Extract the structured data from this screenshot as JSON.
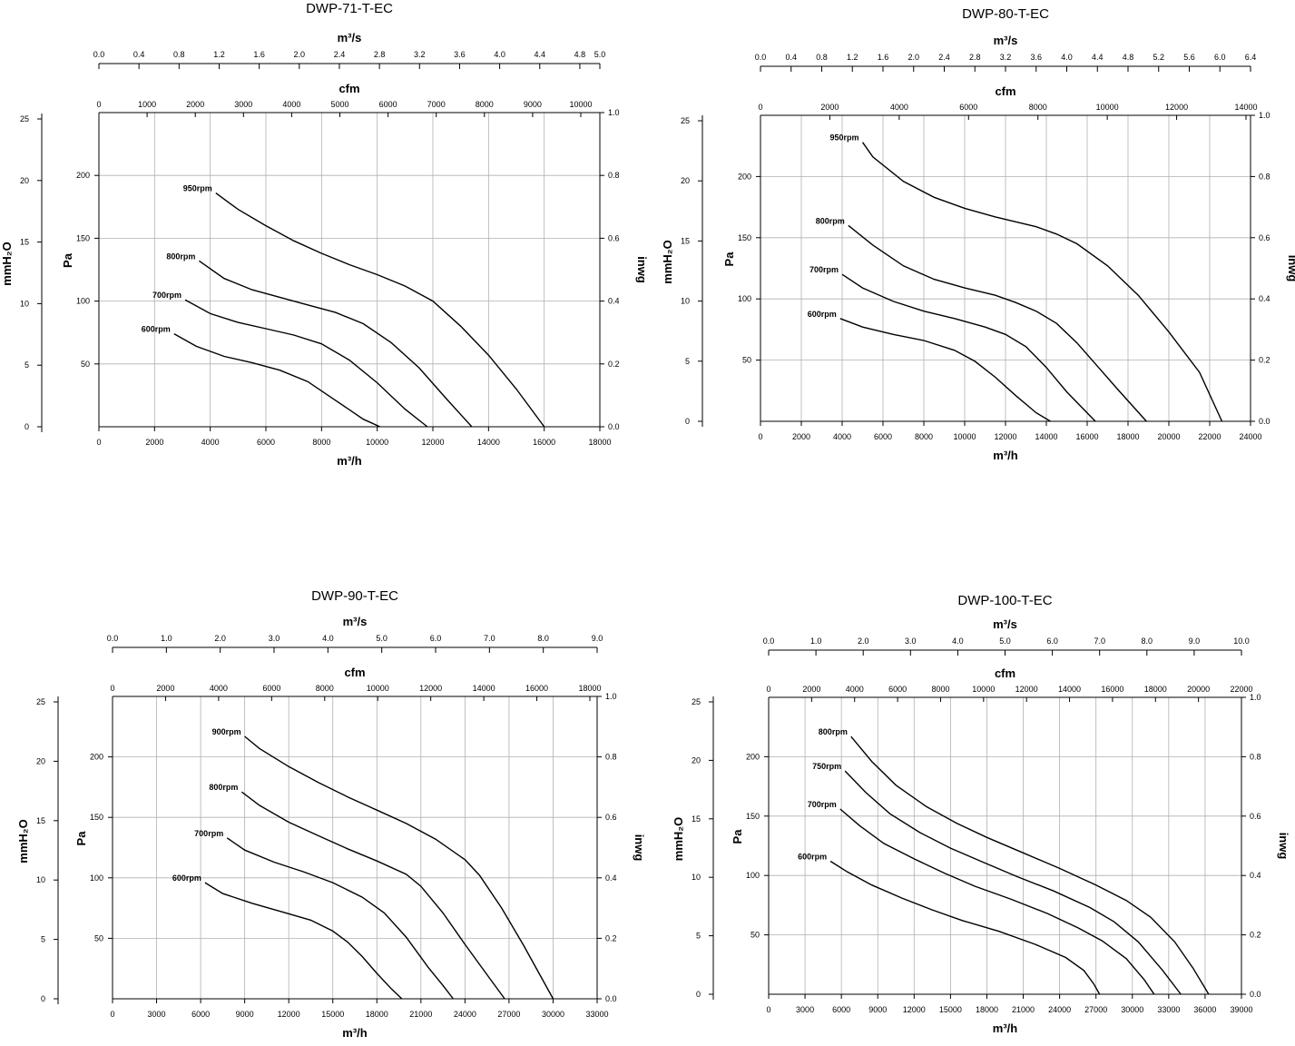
{
  "chart_data": [
    {
      "type": "line",
      "title": "DWP-71-T-EC",
      "xlabel": "m³/h",
      "ylabel": "Pa",
      "top_axis_1": {
        "label": "m³/s",
        "ticks": [
          "0.0",
          "0.4",
          "0.8",
          "1.2",
          "1.6",
          "2.0",
          "2.4",
          "2.8",
          "3.2",
          "3.6",
          "4.0",
          "4.4",
          "4.8",
          "5.0"
        ],
        "vals": [
          0,
          0.4,
          0.8,
          1.2,
          1.6,
          2.0,
          2.4,
          2.8,
          3.2,
          3.6,
          4.0,
          4.4,
          4.8,
          5.0
        ]
      },
      "top_axis_2": {
        "label": "cfm",
        "ticks": [
          "0",
          "1000",
          "2000",
          "3000",
          "4000",
          "5000",
          "6000",
          "7000",
          "8000",
          "9000",
          "10000"
        ],
        "vals": [
          0,
          1000,
          2000,
          3000,
          4000,
          5000,
          6000,
          7000,
          8000,
          9000,
          10000
        ]
      },
      "left_outer_axis": {
        "label": "mmH₂O",
        "ticks": [
          "0",
          "5",
          "10",
          "15",
          "20",
          "25"
        ],
        "vals": [
          0,
          5,
          10,
          15,
          20,
          25
        ]
      },
      "right_axis": {
        "label": "inwg",
        "ticks": [
          "0.0",
          "0.2",
          "0.4",
          "0.6",
          "0.8",
          "1.0"
        ],
        "vals": [
          0,
          0.2,
          0.4,
          0.6,
          0.8,
          1.0
        ]
      },
      "xlim": [
        0,
        18000
      ],
      "ylim": [
        0,
        250
      ],
      "x_ticks": [
        0,
        2000,
        4000,
        6000,
        8000,
        10000,
        12000,
        14000,
        16000,
        18000
      ],
      "y_ticks": [
        50,
        100,
        150,
        200
      ],
      "grid": true,
      "series": [
        {
          "name": "950rpm",
          "x": [
            4200,
            5000,
            6000,
            7000,
            8000,
            9000,
            10000,
            11000,
            12000,
            13000,
            14000,
            15000,
            16000
          ],
          "y": [
            186,
            173,
            160,
            148,
            138,
            129,
            121,
            112,
            100,
            80,
            57,
            30,
            0
          ]
        },
        {
          "name": "800rpm",
          "x": [
            3600,
            4500,
            5500,
            6500,
            7500,
            8500,
            9500,
            10500,
            11500,
            12500,
            13400
          ],
          "y": [
            132,
            118,
            109,
            103,
            97,
            91,
            82,
            67,
            47,
            22,
            0
          ]
        },
        {
          "name": "700rpm",
          "x": [
            3100,
            4000,
            5000,
            6000,
            7000,
            8000,
            9000,
            10000,
            11000,
            11800
          ],
          "y": [
            101,
            90,
            83,
            78,
            73,
            66,
            53,
            35,
            14,
            0
          ]
        },
        {
          "name": "600rpm",
          "x": [
            2700,
            3500,
            4500,
            5500,
            6500,
            7500,
            8500,
            9500,
            10100
          ],
          "y": [
            74,
            64,
            56,
            51,
            45,
            36,
            21,
            6,
            0
          ]
        }
      ]
    },
    {
      "type": "line",
      "title": "DWP-80-T-EC",
      "xlabel": "m³/h",
      "ylabel": "Pa",
      "top_axis_1": {
        "label": "m³/s",
        "ticks": [
          "0.0",
          "0.4",
          "0.8",
          "1.2",
          "1.6",
          "2.0",
          "2.4",
          "2.8",
          "3.2",
          "3.6",
          "4.0",
          "4.4",
          "4.8",
          "5.2",
          "5.6",
          "6.0",
          "6.4"
        ],
        "vals": [
          0,
          0.4,
          0.8,
          1.2,
          1.6,
          2.0,
          2.4,
          2.8,
          3.2,
          3.6,
          4.0,
          4.4,
          4.8,
          5.2,
          5.6,
          6.0,
          6.4
        ]
      },
      "top_axis_2": {
        "label": "cfm",
        "ticks": [
          "0",
          "2000",
          "4000",
          "6000",
          "8000",
          "10000",
          "12000",
          "14000"
        ],
        "vals": [
          0,
          2000,
          4000,
          6000,
          8000,
          10000,
          12000,
          14000
        ]
      },
      "left_outer_axis": {
        "label": "mmH₂O",
        "ticks": [
          "0",
          "5",
          "10",
          "15",
          "20",
          "25"
        ],
        "vals": [
          0,
          5,
          10,
          15,
          20,
          25
        ]
      },
      "right_axis": {
        "label": "inwg",
        "ticks": [
          "0.0",
          "0.2",
          "0.4",
          "0.6",
          "0.8",
          "1.0"
        ],
        "vals": [
          0,
          0.2,
          0.4,
          0.6,
          0.8,
          1.0
        ]
      },
      "xlim": [
        0,
        24000
      ],
      "ylim": [
        0,
        250
      ],
      "x_ticks": [
        0,
        2000,
        4000,
        6000,
        8000,
        10000,
        12000,
        14000,
        16000,
        18000,
        20000,
        22000,
        24000
      ],
      "y_ticks": [
        50,
        100,
        150,
        200
      ],
      "grid": true,
      "series": [
        {
          "name": "950rpm",
          "x": [
            5000,
            5500,
            7000,
            8500,
            10000,
            11500,
            12500,
            13500,
            14500,
            15500,
            17000,
            18500,
            20000,
            21500,
            22600
          ],
          "y": [
            228,
            216,
            196,
            183,
            174,
            167,
            163,
            159,
            153,
            145,
            127,
            103,
            73,
            40,
            0
          ]
        },
        {
          "name": "800rpm",
          "x": [
            4300,
            5500,
            7000,
            8500,
            10000,
            11500,
            12500,
            13500,
            14500,
            15500,
            16500,
            17500,
            18900
          ],
          "y": [
            160,
            144,
            127,
            116,
            109,
            103,
            97,
            90,
            80,
            64,
            45,
            26,
            0
          ]
        },
        {
          "name": "700rpm",
          "x": [
            4000,
            5000,
            6500,
            8000,
            9500,
            11000,
            12000,
            13000,
            14000,
            15000,
            16400
          ],
          "y": [
            120,
            109,
            98,
            90,
            84,
            77,
            71,
            61,
            44,
            24,
            0
          ]
        },
        {
          "name": "600rpm",
          "x": [
            3900,
            5000,
            6500,
            8000,
            9500,
            10500,
            11500,
            12500,
            13500,
            14200
          ],
          "y": [
            84,
            77,
            71,
            66,
            58,
            49,
            36,
            21,
            7,
            0
          ]
        }
      ]
    },
    {
      "type": "line",
      "title": "DWP-90-T-EC",
      "xlabel": "m³/h",
      "ylabel": "Pa",
      "top_axis_1": {
        "label": "m³/s",
        "ticks": [
          "0.0",
          "1.0",
          "2.0",
          "3.0",
          "4.0",
          "5.0",
          "6.0",
          "7.0",
          "8.0",
          "9.0"
        ],
        "vals": [
          0,
          1,
          2,
          3,
          4,
          5,
          6,
          7,
          8,
          9
        ]
      },
      "top_axis_2": {
        "label": "cfm",
        "ticks": [
          "0",
          "2000",
          "4000",
          "6000",
          "8000",
          "10000",
          "12000",
          "14000",
          "16000",
          "18000"
        ],
        "vals": [
          0,
          2000,
          4000,
          6000,
          8000,
          10000,
          12000,
          14000,
          16000,
          18000
        ]
      },
      "left_outer_axis": {
        "label": "mmH₂O",
        "ticks": [
          "0",
          "5",
          "10",
          "15",
          "20",
          "25"
        ],
        "vals": [
          0,
          5,
          10,
          15,
          20,
          25
        ]
      },
      "right_axis": {
        "label": "inwg",
        "ticks": [
          "0.0",
          "0.2",
          "0.4",
          "0.6",
          "0.8",
          "1.0"
        ],
        "vals": [
          0,
          0.2,
          0.4,
          0.6,
          0.8,
          1.0
        ]
      },
      "xlim": [
        0,
        33000
      ],
      "ylim": [
        0,
        250
      ],
      "x_ticks": [
        0,
        3000,
        6000,
        9000,
        12000,
        15000,
        18000,
        21000,
        24000,
        27000,
        30000,
        33000
      ],
      "y_ticks": [
        50,
        100,
        150,
        200
      ],
      "grid": true,
      "series": [
        {
          "name": "900rpm",
          "x": [
            9000,
            10000,
            12000,
            14000,
            16000,
            18000,
            20000,
            22000,
            24000,
            25000,
            26500,
            28000,
            30000
          ],
          "y": [
            217,
            207,
            192,
            179,
            167,
            156,
            145,
            132,
            115,
            102,
            75,
            44,
            0
          ]
        },
        {
          "name": "800rpm",
          "x": [
            8800,
            10000,
            12000,
            14000,
            16000,
            18000,
            20000,
            21000,
            22500,
            24000,
            25500,
            26700
          ],
          "y": [
            171,
            160,
            146,
            135,
            124,
            114,
            103,
            93,
            71,
            45,
            20,
            0
          ]
        },
        {
          "name": "700rpm",
          "x": [
            7800,
            9000,
            11000,
            13000,
            15000,
            17000,
            18500,
            20000,
            21500,
            22500,
            23200
          ],
          "y": [
            133,
            123,
            113,
            105,
            96,
            84,
            71,
            51,
            26,
            11,
            0
          ]
        },
        {
          "name": "600rpm",
          "x": [
            6300,
            7500,
            9500,
            11500,
            13500,
            15000,
            16000,
            17000,
            18000,
            19000,
            19700
          ],
          "y": [
            96,
            87,
            79,
            72,
            65,
            56,
            47,
            35,
            21,
            8,
            0
          ]
        }
      ]
    },
    {
      "type": "line",
      "title": "DWP-100-T-EC",
      "xlabel": "m³/h",
      "ylabel": "Pa",
      "top_axis_1": {
        "label": "m³/s",
        "ticks": [
          "0.0",
          "1.0",
          "2.0",
          "3.0",
          "4.0",
          "5.0",
          "6.0",
          "7.0",
          "8.0",
          "9.0",
          "10.0"
        ],
        "vals": [
          0,
          1,
          2,
          3,
          4,
          5,
          6,
          7,
          8,
          9,
          10
        ]
      },
      "top_axis_2": {
        "label": "cfm",
        "ticks": [
          "0",
          "2000",
          "4000",
          "6000",
          "8000",
          "10000",
          "12000",
          "14000",
          "16000",
          "18000",
          "20000",
          "22000"
        ],
        "vals": [
          0,
          2000,
          4000,
          6000,
          8000,
          10000,
          12000,
          14000,
          16000,
          18000,
          20000,
          22000
        ]
      },
      "left_outer_axis": {
        "label": "mmH₂O",
        "ticks": [
          "0",
          "5",
          "10",
          "15",
          "20",
          "25"
        ],
        "vals": [
          0,
          5,
          10,
          15,
          20,
          25
        ]
      },
      "right_axis": {
        "label": "inwg",
        "ticks": [
          "0.0",
          "0.2",
          "0.4",
          "0.6",
          "0.8",
          "1.0"
        ],
        "vals": [
          0,
          0.2,
          0.4,
          0.6,
          0.8,
          1.0
        ]
      },
      "xlim": [
        0,
        39000
      ],
      "ylim": [
        0,
        250
      ],
      "x_ticks": [
        0,
        3000,
        6000,
        9000,
        12000,
        15000,
        18000,
        21000,
        24000,
        27000,
        30000,
        33000,
        36000,
        39000
      ],
      "y_ticks": [
        50,
        100,
        150,
        200
      ],
      "grid": true,
      "series": [
        {
          "name": "800rpm",
          "x": [
            6800,
            8500,
            10500,
            13000,
            15500,
            18000,
            21000,
            24000,
            27000,
            29500,
            31500,
            33500,
            35000,
            36300
          ],
          "y": [
            217,
            196,
            176,
            158,
            144,
            132,
            119,
            106,
            92,
            79,
            65,
            44,
            22,
            0
          ]
        },
        {
          "name": "750rpm",
          "x": [
            6300,
            8000,
            10000,
            12500,
            15000,
            17500,
            20500,
            23500,
            26500,
            28500,
            30500,
            32500,
            34000
          ],
          "y": [
            188,
            170,
            152,
            136,
            123,
            112,
            99,
            87,
            73,
            61,
            44,
            20,
            0
          ]
        },
        {
          "name": "700rpm",
          "x": [
            5900,
            7500,
            9500,
            12000,
            14500,
            17000,
            20000,
            23000,
            25500,
            27500,
            29500,
            31000,
            31800
          ],
          "y": [
            156,
            142,
            127,
            114,
            102,
            91,
            80,
            68,
            56,
            45,
            30,
            12,
            0
          ]
        },
        {
          "name": "600rpm",
          "x": [
            5100,
            6500,
            8500,
            11000,
            13500,
            16000,
            19000,
            22000,
            24500,
            26000,
            26800,
            27300
          ],
          "y": [
            112,
            103,
            92,
            81,
            71,
            62,
            53,
            42,
            31,
            20,
            9,
            0
          ]
        }
      ]
    }
  ]
}
